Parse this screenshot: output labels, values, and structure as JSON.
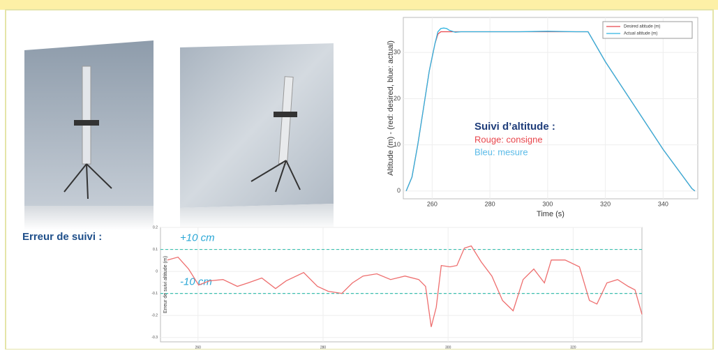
{
  "chart_data": [
    {
      "type": "line",
      "x": [
        251,
        253,
        255,
        257,
        259,
        261,
        262,
        263,
        264,
        265,
        266,
        268,
        270,
        280,
        290,
        300,
        310,
        314,
        320,
        330,
        340,
        350,
        351
      ],
      "series": [
        {
          "name": "Desired altitude (m)",
          "color": "#e8464c",
          "values": [
            0,
            3,
            10,
            18,
            26,
            32,
            34,
            34.5,
            34.5,
            34.5,
            34.5,
            34.5,
            34.5,
            34.5,
            34.5,
            34.5,
            34.5,
            34.5,
            28,
            18.5,
            9,
            0.5,
            0
          ]
        },
        {
          "name": "Actual altitude (m)",
          "color": "#2fb3e0",
          "values": [
            0,
            3,
            10,
            18,
            26,
            32,
            34.5,
            35.2,
            35.3,
            35.2,
            34.8,
            34.4,
            34.5,
            34.5,
            34.5,
            34.6,
            34.5,
            34.5,
            28,
            18.5,
            9,
            0.5,
            0
          ]
        }
      ],
      "xlabel": "Time (s)",
      "ylabel": "Altitude (m) - (red: desired, blue: actual)",
      "xlim": [
        250,
        352
      ],
      "xticks": [
        260,
        280,
        300,
        320,
        340
      ],
      "ylim": [
        -1.7,
        37.6
      ],
      "yticks": [
        0,
        10,
        20,
        30
      ],
      "grid": true,
      "legend": "upper right",
      "annotations": [
        {
          "text": "Suivi d’altitude :",
          "color": "#1f3d7a"
        },
        {
          "text": "Rouge: consigne",
          "color": "#e8464c"
        },
        {
          "text": "Bleu: mesure",
          "color": "#5bbbe8"
        }
      ]
    },
    {
      "type": "line",
      "title": "Erreur de suivi :",
      "x": [
        255.1,
        256.8,
        258.5,
        260.1,
        261.8,
        264.0,
        266.3,
        268.0,
        270.2,
        272.4,
        274.1,
        276.9,
        279.1,
        280.8,
        283.0,
        284.7,
        286.4,
        288.6,
        290.8,
        293.1,
        295.3,
        296.4,
        297.3,
        298.1,
        298.9,
        300.3,
        301.4,
        302.6,
        303.7,
        305.3,
        307.0,
        308.7,
        310.4,
        312.0,
        313.7,
        315.4,
        316.5,
        318.7,
        321.0,
        322.6,
        323.8,
        325.4,
        327.1,
        328.8,
        329.9,
        331.0
      ],
      "series": [
        {
          "name": null,
          "color": "#ee6e6e",
          "values": [
            0.052,
            0.065,
            0.011,
            -0.062,
            -0.043,
            -0.037,
            -0.068,
            -0.052,
            -0.03,
            -0.078,
            -0.043,
            -0.005,
            -0.068,
            -0.09,
            -0.1,
            -0.052,
            -0.021,
            -0.011,
            -0.037,
            -0.021,
            -0.037,
            -0.068,
            -0.252,
            -0.163,
            0.027,
            0.021,
            0.027,
            0.106,
            0.116,
            0.043,
            -0.021,
            -0.132,
            -0.179,
            -0.037,
            0.011,
            -0.052,
            0.052,
            0.052,
            0.021,
            -0.132,
            -0.148,
            -0.052,
            -0.037,
            -0.068,
            -0.084,
            -0.195
          ]
        }
      ],
      "ylabel": "Erreur de suivi altitude (m)",
      "xlim": [
        254,
        331
      ],
      "xticks": [
        260,
        280,
        300,
        320
      ],
      "ylim": [
        -0.32,
        0.2
      ],
      "yticks": [
        0.2,
        0.1,
        0,
        -0.1,
        -0.2,
        -0.3
      ],
      "grid": true,
      "reference_lines": [
        {
          "value": 0.1,
          "label": "+10 cm",
          "color": "#3cc0b0"
        },
        {
          "value": -0.1,
          "label": "-10 cm",
          "color": "#3cc0b0"
        }
      ]
    }
  ]
}
